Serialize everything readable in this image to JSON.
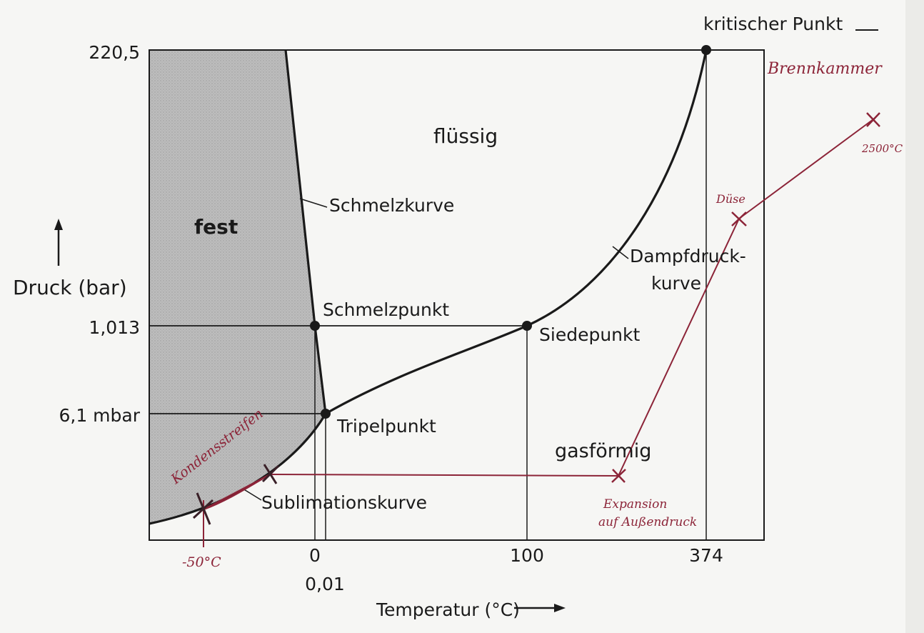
{
  "axes": {
    "y_label": "Druck (bar)",
    "x_label": "Temperatur (°C)",
    "y_ticks": [
      "220,5",
      "1,013",
      "6,1 mbar"
    ],
    "x_ticks": [
      "0",
      "0,01",
      "100",
      "374"
    ]
  },
  "regions": {
    "solid": "fest",
    "liquid": "flüssig",
    "gas": "gasförmig"
  },
  "curves": {
    "melting": "Schmelzkurve",
    "vapor_line1": "Dampfdruck-",
    "vapor_line2": "kurve",
    "sublimation": "Sublimationskurve"
  },
  "points": {
    "critical": "kritischer Punkt",
    "melting_point": "Schmelzpunkt",
    "boiling_point": "Siedepunkt",
    "triple_point": "Tripelpunkt"
  },
  "annotations": {
    "combustion_chamber": "Brennkammer",
    "temp_2500": "2500°C",
    "nozzle": "Düse",
    "expansion_line1": "Expansion",
    "expansion_line2": "auf Außendruck",
    "minus50": "-50°C",
    "condensation": "Kondensstreifen"
  },
  "colors": {
    "ink": "#1a1a1a",
    "solid_fill": "#b9b9b9",
    "handwriting": "#8c2438",
    "paper": "#f6f6f4"
  }
}
